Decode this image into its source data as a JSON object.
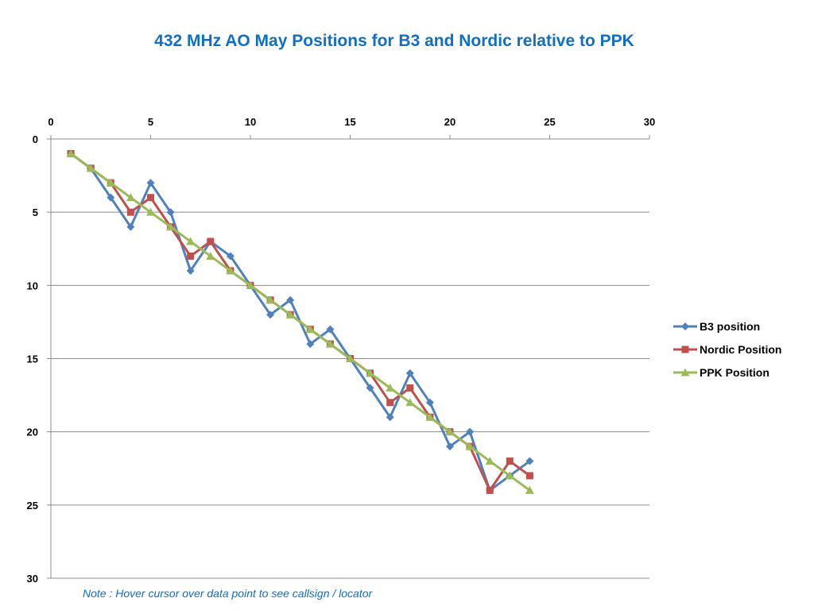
{
  "note": "Note : Hover cursor over data point to see callsign / locator",
  "chart_data": {
    "type": "line",
    "title": "432 MHz AO May Positions for B3 and Nordic relative to PPK",
    "xlabel": "",
    "ylabel": "",
    "xlim": [
      0,
      30
    ],
    "ylim": [
      0,
      30
    ],
    "y_reversed": true,
    "x_axis_position": "top",
    "x_ticks": [
      0,
      5,
      10,
      15,
      20,
      25,
      30
    ],
    "y_ticks": [
      0,
      5,
      10,
      15,
      20,
      25,
      30
    ],
    "grid": "horizontal",
    "legend_position": "right",
    "x": [
      1,
      2,
      3,
      4,
      5,
      6,
      7,
      8,
      9,
      10,
      11,
      12,
      13,
      14,
      15,
      16,
      17,
      18,
      19,
      20,
      21,
      22,
      23,
      24
    ],
    "series": [
      {
        "name": "B3 position",
        "color": "#4f81bd",
        "marker": "diamond",
        "values": [
          1,
          2,
          4,
          6,
          3,
          5,
          9,
          7,
          8,
          10,
          12,
          11,
          14,
          13,
          15,
          17,
          19,
          16,
          18,
          21,
          20,
          24,
          23,
          22
        ]
      },
      {
        "name": "Nordic Position",
        "color": "#c0504d",
        "marker": "square",
        "values": [
          1,
          2,
          3,
          5,
          4,
          6,
          8,
          7,
          9,
          10,
          11,
          12,
          13,
          14,
          15,
          16,
          18,
          17,
          19,
          20,
          21,
          24,
          22,
          23
        ]
      },
      {
        "name": "PPK Position",
        "color": "#9bbb59",
        "marker": "triangle",
        "values": [
          1,
          2,
          3,
          4,
          5,
          6,
          7,
          8,
          9,
          10,
          11,
          12,
          13,
          14,
          15,
          16,
          17,
          18,
          19,
          20,
          21,
          22,
          23,
          24
        ]
      }
    ]
  }
}
